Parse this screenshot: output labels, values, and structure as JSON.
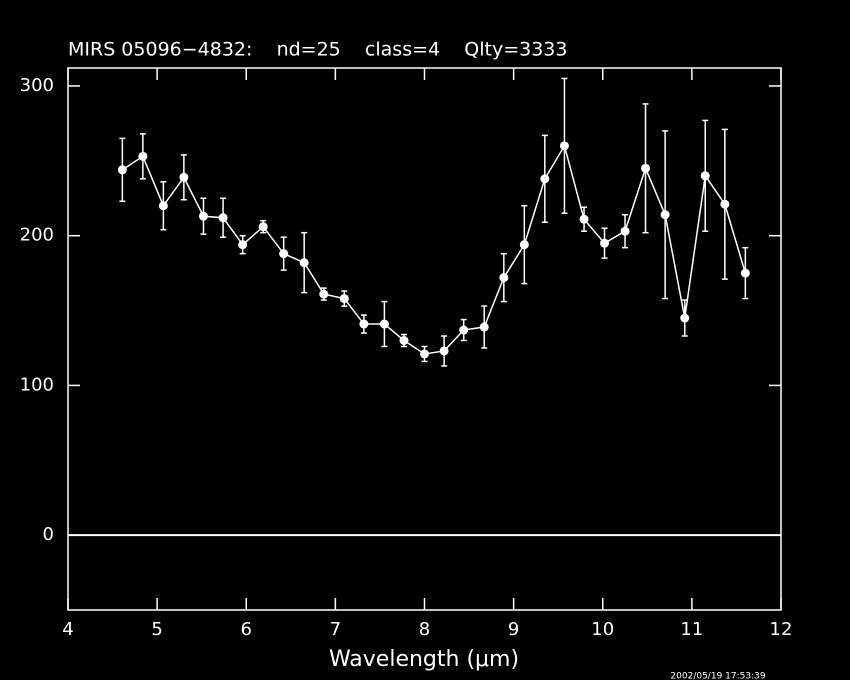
{
  "chart_data": {
    "type": "errorbar",
    "title": "MIRS 05096−4832:    nd=25    class=4    Qlty=3333",
    "x_label": "Wavelength (μm)",
    "annotation": "2002/05/19 17:53:39",
    "xlim": [
      4,
      12
    ],
    "xticks": [
      4,
      5,
      6,
      7,
      8,
      9,
      10,
      11,
      12
    ],
    "ylim": [
      -50,
      312
    ],
    "yticks": [
      0,
      100,
      200,
      300
    ],
    "zero_line": true,
    "color": "#ffffff",
    "x": [
      4.61,
      4.84,
      5.07,
      5.3,
      5.52,
      5.74,
      5.96,
      6.19,
      6.42,
      6.65,
      6.87,
      7.1,
      7.32,
      7.55,
      7.77,
      8.0,
      8.22,
      8.44,
      8.67,
      8.89,
      9.12,
      9.35,
      9.57,
      9.79,
      10.02,
      10.25,
      10.48,
      10.7,
      10.92,
      11.15,
      11.37,
      11.6
    ],
    "values": [
      244,
      253,
      220,
      239,
      213,
      212,
      194,
      206,
      188,
      182,
      161,
      158,
      141,
      141,
      130,
      121,
      123,
      137,
      139,
      172,
      194,
      238,
      260,
      211,
      195,
      203,
      245,
      214,
      145,
      240,
      221,
      175
    ],
    "errors": [
      21,
      15,
      16,
      15,
      12,
      13,
      6,
      4,
      11,
      20,
      4,
      5,
      6,
      15,
      4,
      5,
      10,
      7,
      14,
      16,
      26,
      29,
      45,
      8,
      10,
      11,
      43,
      56,
      12,
      37,
      50,
      17
    ]
  }
}
